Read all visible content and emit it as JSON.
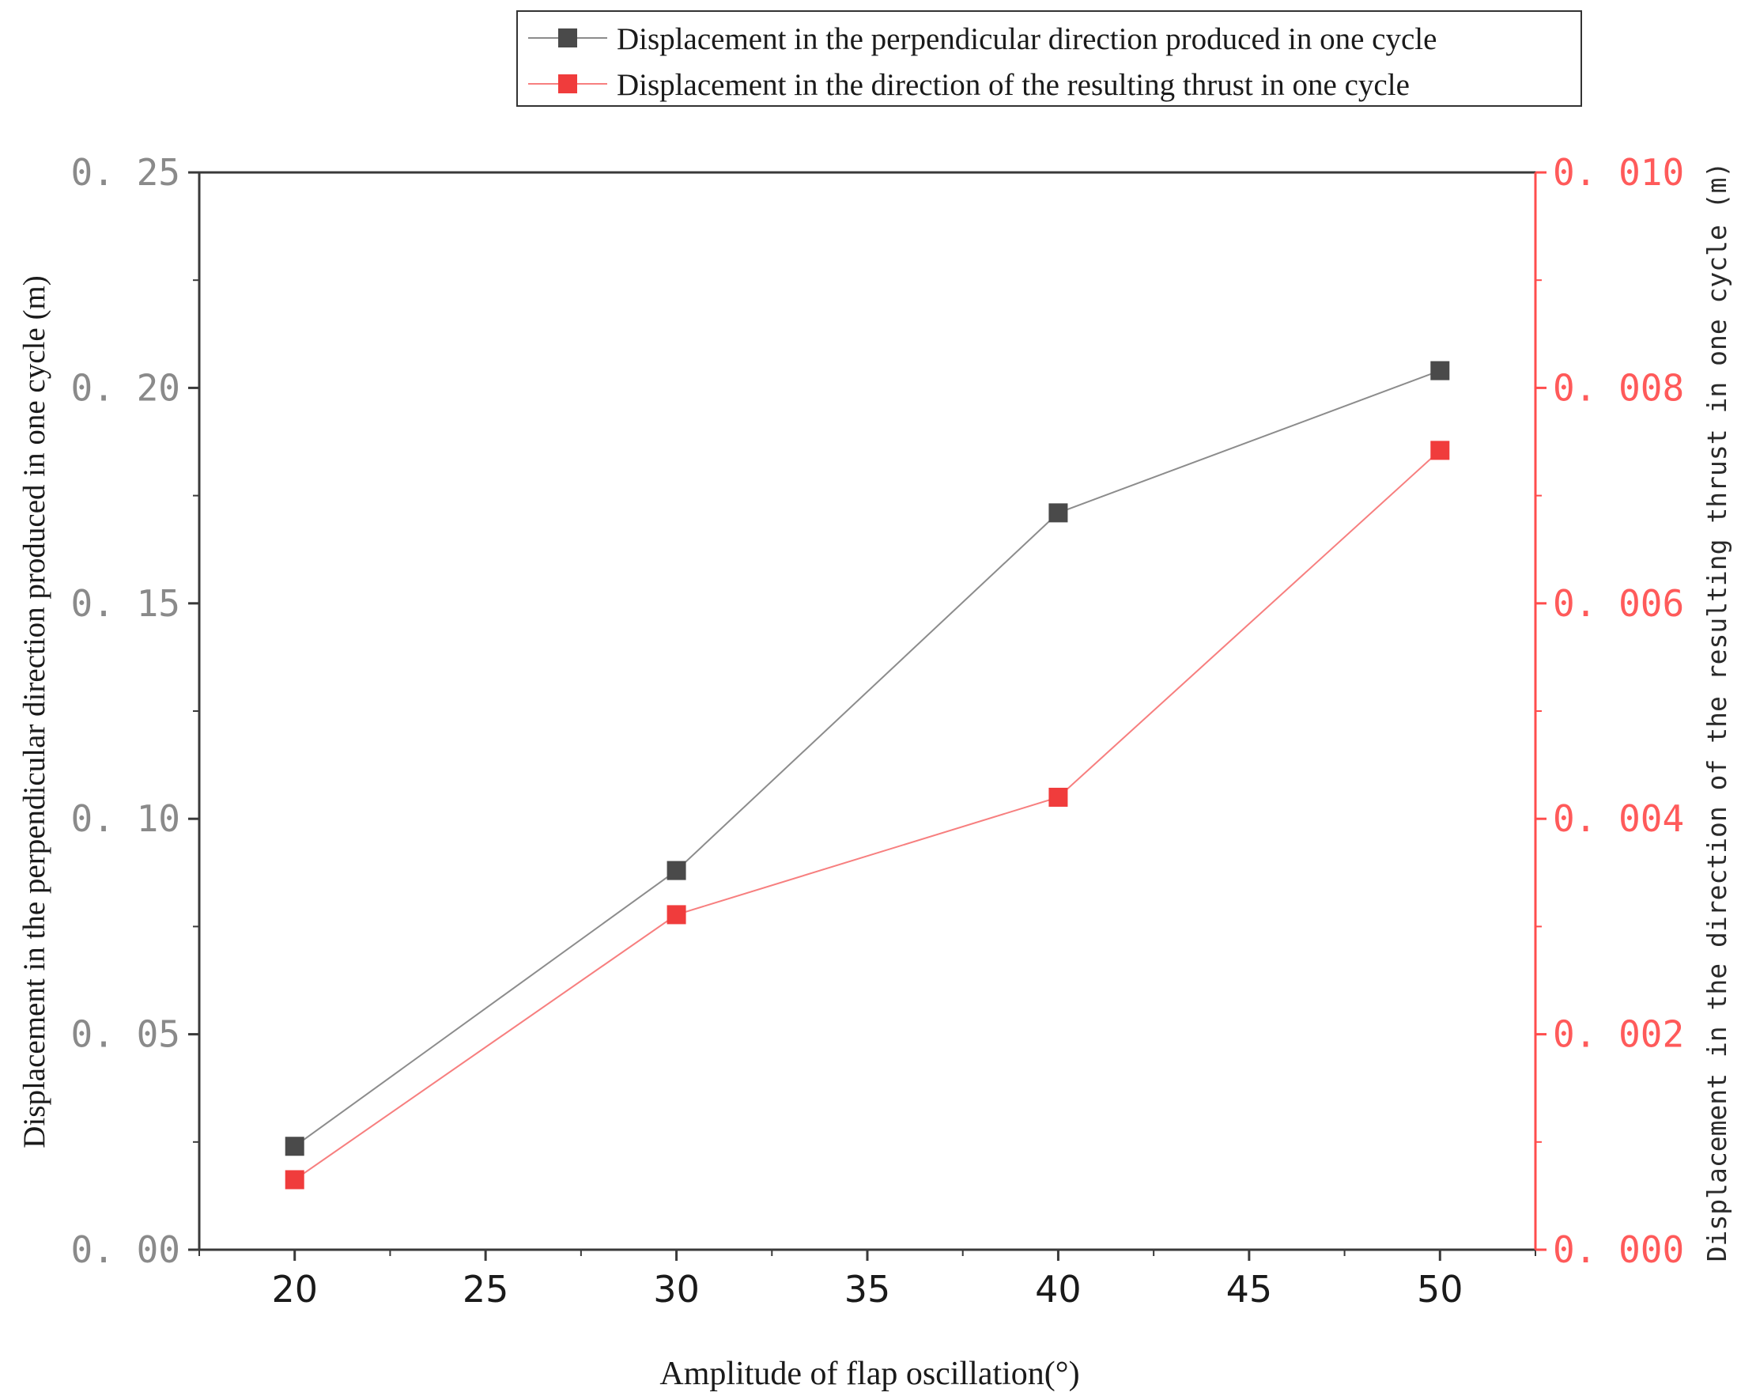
{
  "chart_data": {
    "type": "line",
    "xlabel": "Amplitude of flap oscillation(°)",
    "ylabel_left": "Displacement in the perpendicular direction produced in one cycle (m)",
    "ylabel_right": "Displacement in the direction of the resulting thrust in one cycle (m)",
    "xlim": [
      17.5,
      52.5
    ],
    "ylim_left": [
      0,
      0.25
    ],
    "ylim_right": [
      0,
      0.01
    ],
    "x_ticks": [
      20,
      25,
      30,
      35,
      40,
      45,
      50
    ],
    "x_tick_labels": [
      "20",
      "25",
      "30",
      "35",
      "40",
      "45",
      "50"
    ],
    "y_left_ticks": [
      0,
      0.05,
      0.1,
      0.15,
      0.2,
      0.25
    ],
    "y_left_tick_labels": [
      "0. 00",
      "0. 05",
      "0. 10",
      "0. 15",
      "0. 20",
      "0. 25"
    ],
    "y_right_ticks": [
      0,
      0.002,
      0.004,
      0.006,
      0.008,
      0.01
    ],
    "y_right_tick_labels": [
      "0. 000",
      "0. 002",
      "0. 004",
      "0. 006",
      "0. 008",
      "0. 010"
    ],
    "grid": false,
    "legend_position": "top",
    "x": [
      20,
      30,
      40,
      50
    ],
    "series": [
      {
        "name": "Displacement in the perpendicular direction produced in one cycle",
        "axis": "left",
        "color": "#4a4a4a",
        "line_color": "#8c8c8c",
        "marker": "square",
        "values": [
          0.024,
          0.088,
          0.171,
          0.204
        ]
      },
      {
        "name": "Displacement in the direction of the resulting thrust in one cycle",
        "axis": "right",
        "color": "#f03c3c",
        "line_color": "#f77f7f",
        "marker": "square",
        "values": [
          0.00065,
          0.00311,
          0.0042,
          0.00742
        ]
      }
    ],
    "colors": {
      "axis_left": "#3a3a3a",
      "axis_right": "#ff4d4d",
      "left_tick_text": "#8a8a8a",
      "right_tick_text": "#ff5a5a",
      "bottom_tick_text": "#1a1a1a"
    }
  }
}
